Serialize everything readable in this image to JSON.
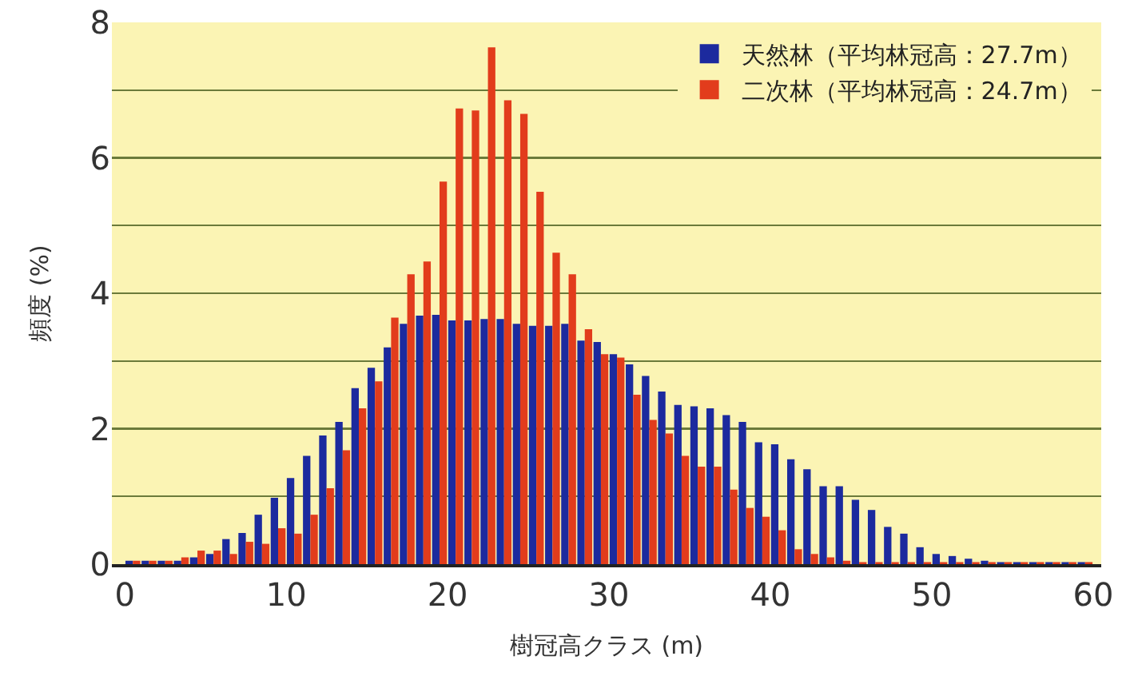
{
  "chart_data": {
    "type": "histogram",
    "xlabel": "樹冠高クラス (m)",
    "ylabel": "頻度 (%)",
    "bins": [
      0,
      1,
      2,
      3,
      4,
      5,
      6,
      7,
      8,
      9,
      10,
      11,
      12,
      13,
      14,
      15,
      16,
      17,
      18,
      19,
      20,
      21,
      22,
      23,
      24,
      25,
      26,
      27,
      28,
      29,
      30,
      31,
      32,
      33,
      34,
      35,
      36,
      37,
      38,
      39,
      40,
      41,
      42,
      43,
      44,
      45,
      46,
      47,
      48,
      49,
      50,
      51,
      52,
      53,
      54,
      55,
      56,
      57,
      58,
      59,
      60
    ],
    "series": [
      {
        "name": "天然林（平均林冠高：27.7m）",
        "color": "#1c2a9e",
        "values": [
          0.05,
          0.05,
          0.05,
          0.05,
          0.1,
          0.15,
          0.37,
          0.46,
          0.73,
          0.98,
          1.27,
          1.6,
          1.9,
          2.1,
          2.6,
          2.9,
          3.2,
          3.55,
          3.67,
          3.68,
          3.6,
          3.6,
          3.62,
          3.62,
          3.55,
          3.52,
          3.52,
          3.55,
          3.3,
          3.28,
          3.1,
          2.95,
          2.78,
          2.55,
          2.35,
          2.33,
          2.3,
          2.2,
          2.1,
          1.8,
          1.77,
          1.55,
          1.4,
          1.15,
          1.15,
          0.95,
          0.8,
          0.55,
          0.45,
          0.25,
          0.15,
          0.12,
          0.08,
          0.05,
          0.03,
          0.03,
          0.03,
          0.03,
          0.03,
          0.03
        ]
      },
      {
        "name": "二次林（平均林冠高：24.7m）",
        "color": "#e23c1c",
        "values": [
          0.05,
          0.05,
          0.05,
          0.1,
          0.2,
          0.2,
          0.15,
          0.33,
          0.3,
          0.53,
          0.45,
          0.73,
          1.12,
          1.68,
          2.3,
          2.7,
          3.64,
          4.28,
          4.47,
          5.65,
          6.73,
          6.7,
          7.63,
          6.85,
          6.65,
          5.5,
          4.6,
          4.28,
          3.47,
          3.1,
          3.05,
          2.5,
          2.13,
          1.93,
          1.6,
          1.44,
          1.44,
          1.1,
          0.83,
          0.7,
          0.5,
          0.22,
          0.15,
          0.1,
          0.05,
          0.03,
          0.03,
          0.03,
          0.03,
          0.03,
          0.03,
          0.03,
          0.03,
          0.03,
          0.03,
          0.03,
          0.03,
          0.03,
          0.03,
          0.03
        ]
      }
    ],
    "xlim": [
      -0.8,
      60.5
    ],
    "xticks": [
      0,
      10,
      20,
      30,
      40,
      50,
      60
    ],
    "ylim": [
      0,
      8
    ],
    "yticks": [
      0,
      {
        "value": 1,
        "label": null
      },
      2,
      {
        "value": 3,
        "label": null
      },
      4,
      {
        "value": 5,
        "label": null
      },
      6,
      {
        "value": 7,
        "label": null
      },
      8
    ],
    "grid": "y",
    "legend": "top right"
  }
}
